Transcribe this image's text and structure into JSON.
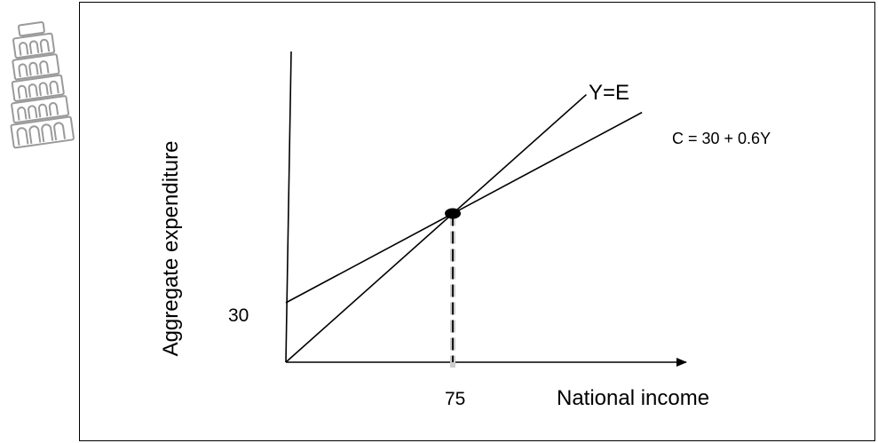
{
  "chart_data": {
    "type": "line",
    "title": "",
    "xlabel": "National income",
    "ylabel": "Aggregate expenditure",
    "x_tick_labels": [
      "75"
    ],
    "y_tick_labels": [
      "30"
    ],
    "xlim": [
      0,
      145
    ],
    "ylim": [
      0,
      135
    ],
    "grid": false,
    "series": [
      {
        "name": "Y=E",
        "points": [
          [
            0,
            0
          ],
          [
            135,
            135
          ]
        ],
        "color": "#000000"
      },
      {
        "name": "C = 30 + 0.6Y",
        "points": [
          [
            0,
            30
          ],
          [
            160,
            126
          ]
        ],
        "color": "#000000"
      }
    ],
    "equilibrium": {
      "x": 75,
      "y": 75
    },
    "equilibrium_guide": "dashed"
  },
  "logo": {
    "icon": "leaning-tower-icon"
  }
}
